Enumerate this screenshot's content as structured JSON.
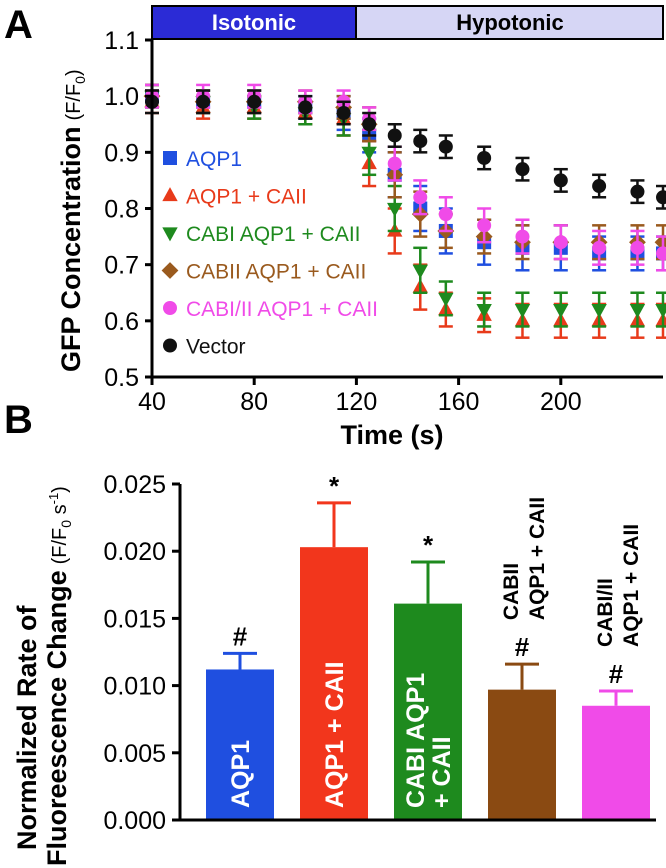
{
  "panels": {
    "a_letter": "A",
    "b_letter": "B"
  },
  "conditions": {
    "isotonic": "Isotonic",
    "hypotonic": "Hypotonic",
    "isotonic_color": "#2b2bd6",
    "hypotonic_color": "#d6d6f5"
  },
  "chart_data": [
    {
      "type": "scatter",
      "panel": "A",
      "xlabel": "Time (s)",
      "ylabel": "GFP Concentration",
      "ylabel_unit": "(F/F",
      "ylabel_unit_sub": "0",
      "ylabel_unit_close": ")",
      "xlim": [
        40,
        240
      ],
      "ylim": [
        0.5,
        1.1
      ],
      "x_ticks": [
        40,
        80,
        120,
        160,
        200
      ],
      "y_ticks": [
        0.5,
        0.6,
        0.7,
        0.8,
        0.9,
        1.0,
        1.1
      ],
      "y_tick_labels": [
        "0.5",
        "0.6",
        "0.7",
        "0.8",
        "0.9",
        "1.0",
        "1.1"
      ],
      "legend_position": "left",
      "series": [
        {
          "name": "AQP1",
          "color": "#1f4fe0",
          "marker": "square",
          "x": [
            40,
            60,
            80,
            100,
            115,
            125,
            135,
            145,
            155,
            170,
            185,
            200,
            215,
            230,
            240
          ],
          "y": [
            1.0,
            0.99,
            0.99,
            0.98,
            0.97,
            0.93,
            0.86,
            0.8,
            0.76,
            0.74,
            0.73,
            0.73,
            0.72,
            0.72,
            0.72
          ],
          "err": [
            0.02,
            0.02,
            0.02,
            0.02,
            0.03,
            0.03,
            0.04,
            0.04,
            0.04,
            0.04,
            0.04,
            0.04,
            0.03,
            0.03,
            0.03
          ]
        },
        {
          "name": "AQP1 + CAII",
          "color": "#e83a1a",
          "marker": "triangle-up",
          "x": [
            40,
            60,
            80,
            100,
            115,
            125,
            135,
            145,
            155,
            170,
            185,
            200,
            215,
            230,
            240
          ],
          "y": [
            0.99,
            0.98,
            0.98,
            0.97,
            0.96,
            0.88,
            0.76,
            0.66,
            0.62,
            0.61,
            0.6,
            0.6,
            0.6,
            0.6,
            0.6
          ],
          "err": [
            0.02,
            0.02,
            0.02,
            0.02,
            0.03,
            0.04,
            0.04,
            0.04,
            0.03,
            0.03,
            0.03,
            0.03,
            0.03,
            0.03,
            0.03
          ]
        },
        {
          "name": "CABI AQP1 + CAII",
          "color": "#1e8a1e",
          "marker": "triangle-down",
          "x": [
            40,
            60,
            80,
            100,
            115,
            125,
            135,
            145,
            155,
            170,
            185,
            200,
            215,
            230,
            240
          ],
          "y": [
            1.0,
            0.99,
            0.98,
            0.97,
            0.96,
            0.9,
            0.8,
            0.69,
            0.64,
            0.62,
            0.62,
            0.62,
            0.62,
            0.62,
            0.62
          ],
          "err": [
            0.02,
            0.02,
            0.02,
            0.02,
            0.03,
            0.04,
            0.04,
            0.04,
            0.03,
            0.03,
            0.03,
            0.03,
            0.03,
            0.03,
            0.03
          ]
        },
        {
          "name": "CABII AQP1 + CAII",
          "color": "#9a5a1e",
          "marker": "diamond",
          "x": [
            40,
            60,
            80,
            100,
            115,
            125,
            135,
            145,
            155,
            170,
            185,
            200,
            215,
            230,
            240
          ],
          "y": [
            1.0,
            0.99,
            0.99,
            0.99,
            0.98,
            0.95,
            0.86,
            0.79,
            0.76,
            0.75,
            0.74,
            0.74,
            0.74,
            0.74,
            0.74
          ],
          "err": [
            0.02,
            0.02,
            0.02,
            0.02,
            0.02,
            0.03,
            0.04,
            0.04,
            0.03,
            0.03,
            0.03,
            0.03,
            0.03,
            0.03,
            0.03
          ]
        },
        {
          "name": "CABI/II AQP1 + CAII",
          "color": "#f04be8",
          "marker": "circle",
          "x": [
            40,
            60,
            80,
            100,
            115,
            125,
            135,
            145,
            155,
            170,
            185,
            200,
            215,
            230,
            240
          ],
          "y": [
            1.0,
            1.0,
            1.0,
            0.99,
            0.99,
            0.96,
            0.88,
            0.82,
            0.79,
            0.77,
            0.75,
            0.74,
            0.73,
            0.73,
            0.72
          ],
          "err": [
            0.02,
            0.02,
            0.02,
            0.02,
            0.02,
            0.02,
            0.03,
            0.03,
            0.03,
            0.03,
            0.03,
            0.03,
            0.03,
            0.03,
            0.03
          ]
        },
        {
          "name": "Vector",
          "color": "#111111",
          "marker": "circle",
          "x": [
            40,
            60,
            80,
            100,
            115,
            125,
            135,
            145,
            155,
            170,
            185,
            200,
            215,
            230,
            240
          ],
          "y": [
            0.99,
            0.99,
            0.99,
            0.98,
            0.97,
            0.95,
            0.93,
            0.92,
            0.91,
            0.89,
            0.87,
            0.85,
            0.84,
            0.83,
            0.82
          ],
          "err": [
            0.02,
            0.02,
            0.02,
            0.02,
            0.02,
            0.02,
            0.02,
            0.02,
            0.02,
            0.02,
            0.02,
            0.02,
            0.02,
            0.02,
            0.02
          ]
        }
      ]
    },
    {
      "type": "bar",
      "panel": "B",
      "ylabel_line1": "Normalized Rate of",
      "ylabel_line2": "Fluoreescence Change",
      "ylabel_unit": "(F/F",
      "ylabel_unit_sub": "0",
      "ylabel_unit_mid": " s",
      "ylabel_unit_sup": "-1",
      "ylabel_unit_close": ")",
      "ylim": [
        0,
        0.025
      ],
      "y_ticks": [
        0,
        0.005,
        0.01,
        0.015,
        0.02,
        0.025
      ],
      "y_tick_labels": [
        "0.000",
        "0.005",
        "0.010",
        "0.015",
        "0.020",
        "0.025"
      ],
      "bars": [
        {
          "label_lines": [
            "AQP1"
          ],
          "label_inside": true,
          "value": 0.0112,
          "err": 0.0012,
          "color": "#1f4fe0",
          "mark": "#"
        },
        {
          "label_lines": [
            "AQP1 + CAII"
          ],
          "label_inside": true,
          "value": 0.0203,
          "err": 0.0033,
          "color": "#f2361c",
          "mark": "*"
        },
        {
          "label_lines": [
            "CABI AQP1",
            "+ CAII"
          ],
          "label_inside": true,
          "value": 0.0161,
          "err": 0.0031,
          "color": "#1e8a1e",
          "mark": "*"
        },
        {
          "label_lines": [
            "CABII",
            "AQP1 + CAII"
          ],
          "label_inside": false,
          "value": 0.0097,
          "err": 0.0019,
          "color": "#8a4a12",
          "mark": "#"
        },
        {
          "label_lines": [
            "CABI/II",
            "AQP1 + CAII"
          ],
          "label_inside": false,
          "value": 0.0085,
          "err": 0.0011,
          "color": "#f04be8",
          "mark": "#"
        }
      ]
    }
  ]
}
